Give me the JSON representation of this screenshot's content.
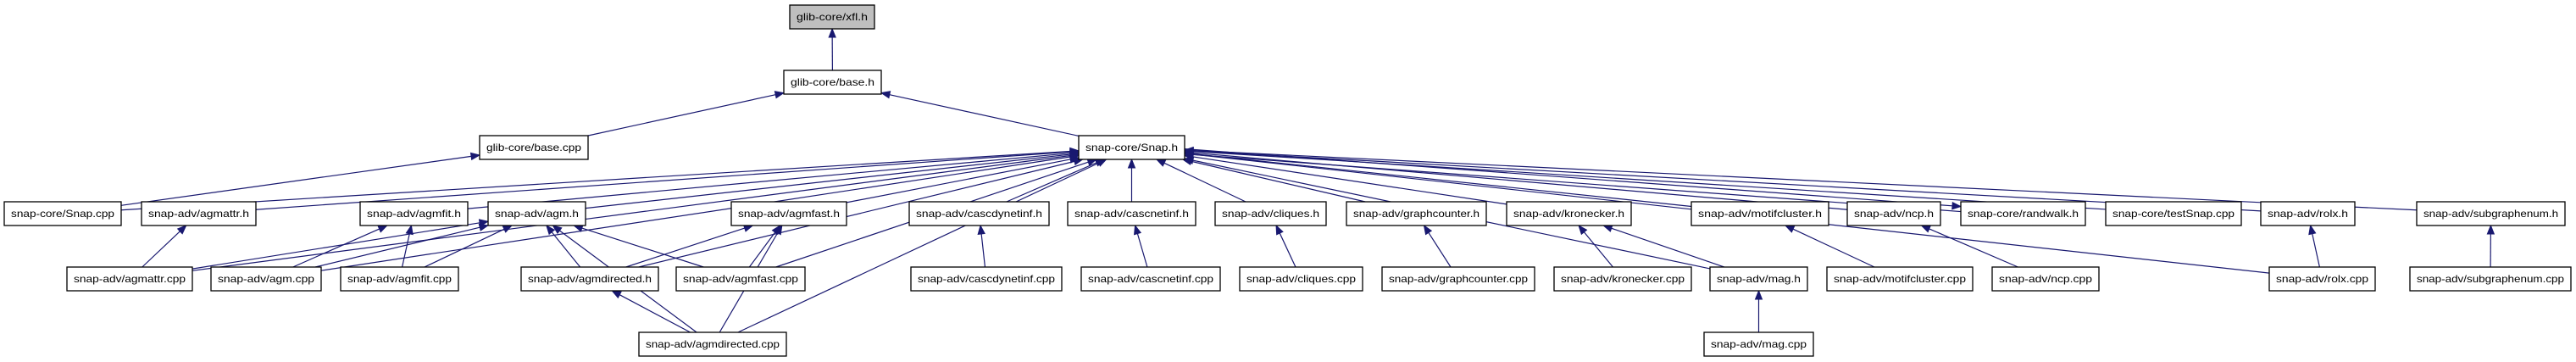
{
  "colors": {
    "edge": "#191970",
    "focus_fill": "#bfbfbf",
    "node_fill": "#ffffff"
  },
  "focus": "xfl_h",
  "nodes": [
    {
      "id": "xfl_h",
      "label": "glib-core/xfl.h"
    },
    {
      "id": "base_h",
      "label": "glib-core/base.h"
    },
    {
      "id": "base_cpp",
      "label": "glib-core/base.cpp"
    },
    {
      "id": "snap_h",
      "label": "snap-core/Snap.h"
    },
    {
      "id": "snap_cpp",
      "label": "snap-core/Snap.cpp"
    },
    {
      "id": "agmattr_h",
      "label": "snap-adv/agmattr.h"
    },
    {
      "id": "agmfit_h",
      "label": "snap-adv/agmfit.h"
    },
    {
      "id": "agm_h",
      "label": "snap-adv/agm.h"
    },
    {
      "id": "agmfast_h",
      "label": "snap-adv/agmfast.h"
    },
    {
      "id": "cascdynetinf_h",
      "label": "snap-adv/cascdynetinf.h"
    },
    {
      "id": "cascnetinf_h",
      "label": "snap-adv/cascnetinf.h"
    },
    {
      "id": "cliques_h",
      "label": "snap-adv/cliques.h"
    },
    {
      "id": "graphcounter_h",
      "label": "snap-adv/graphcounter.h"
    },
    {
      "id": "kronecker_h",
      "label": "snap-adv/kronecker.h"
    },
    {
      "id": "motifcluster_h",
      "label": "snap-adv/motifcluster.h"
    },
    {
      "id": "ncp_h",
      "label": "snap-adv/ncp.h"
    },
    {
      "id": "randwalk_h",
      "label": "snap-core/randwalk.h"
    },
    {
      "id": "testsnap_cpp",
      "label": "snap-core/testSnap.cpp"
    },
    {
      "id": "rolx_h",
      "label": "snap-adv/rolx.h"
    },
    {
      "id": "subgraphenum_h",
      "label": "snap-adv/subgraphenum.h"
    },
    {
      "id": "agmattr_cpp",
      "label": "snap-adv/agmattr.cpp"
    },
    {
      "id": "agm_cpp",
      "label": "snap-adv/agm.cpp"
    },
    {
      "id": "agmfit_cpp",
      "label": "snap-adv/agmfit.cpp"
    },
    {
      "id": "agmdirected_h",
      "label": "snap-adv/agmdirected.h"
    },
    {
      "id": "agmfast_cpp",
      "label": "snap-adv/agmfast.cpp"
    },
    {
      "id": "cascdynetinf_cpp",
      "label": "snap-adv/cascdynetinf.cpp"
    },
    {
      "id": "cascnetinf_cpp",
      "label": "snap-adv/cascnetinf.cpp"
    },
    {
      "id": "cliques_cpp",
      "label": "snap-adv/cliques.cpp"
    },
    {
      "id": "graphcounter_cpp",
      "label": "snap-adv/graphcounter.cpp"
    },
    {
      "id": "kronecker_cpp",
      "label": "snap-adv/kronecker.cpp"
    },
    {
      "id": "mag_h",
      "label": "snap-adv/mag.h"
    },
    {
      "id": "motifcluster_cpp",
      "label": "snap-adv/motifcluster.cpp"
    },
    {
      "id": "ncp_cpp",
      "label": "snap-adv/ncp.cpp"
    },
    {
      "id": "rolx_cpp",
      "label": "snap-adv/rolx.cpp"
    },
    {
      "id": "subgraphenum_cpp",
      "label": "snap-adv/subgraphenum.cpp"
    },
    {
      "id": "agmdirected_cpp",
      "label": "snap-adv/agmdirected.cpp"
    },
    {
      "id": "mag_cpp",
      "label": "snap-adv/mag.cpp"
    }
  ],
  "edges": [
    {
      "from": "base_h",
      "to": "xfl_h"
    },
    {
      "from": "base_cpp",
      "to": "base_h"
    },
    {
      "from": "snap_h",
      "to": "base_h"
    },
    {
      "from": "snap_cpp",
      "to": "base_cpp"
    },
    {
      "from": "snap_cpp",
      "to": "snap_h"
    },
    {
      "from": "agmattr_h",
      "to": "snap_h"
    },
    {
      "from": "agmfit_h",
      "to": "snap_h"
    },
    {
      "from": "agm_h",
      "to": "snap_h"
    },
    {
      "from": "agmfast_h",
      "to": "snap_h"
    },
    {
      "from": "cascdynetinf_h",
      "to": "snap_h"
    },
    {
      "from": "cascnetinf_h",
      "to": "snap_h"
    },
    {
      "from": "cliques_h",
      "to": "snap_h"
    },
    {
      "from": "graphcounter_h",
      "to": "snap_h"
    },
    {
      "from": "kronecker_h",
      "to": "snap_h"
    },
    {
      "from": "motifcluster_h",
      "to": "snap_h"
    },
    {
      "from": "ncp_h",
      "to": "snap_h"
    },
    {
      "from": "randwalk_h",
      "to": "snap_h"
    },
    {
      "from": "snap_h",
      "to": "randwalk_h"
    },
    {
      "from": "testsnap_cpp",
      "to": "snap_h"
    },
    {
      "from": "rolx_h",
      "to": "snap_h"
    },
    {
      "from": "subgraphenum_h",
      "to": "snap_h"
    },
    {
      "from": "agmattr_cpp",
      "to": "agmattr_h"
    },
    {
      "from": "agmattr_cpp",
      "to": "snap_h"
    },
    {
      "from": "agmattr_cpp",
      "to": "agm_h"
    },
    {
      "from": "agm_cpp",
      "to": "snap_h"
    },
    {
      "from": "agm_cpp",
      "to": "agmfit_h"
    },
    {
      "from": "agm_cpp",
      "to": "agm_h"
    },
    {
      "from": "agmfit_cpp",
      "to": "agmfit_h"
    },
    {
      "from": "agmfit_cpp",
      "to": "agm_h"
    },
    {
      "from": "agmdirected_h",
      "to": "snap_h"
    },
    {
      "from": "agmdirected_h",
      "to": "agm_h"
    },
    {
      "from": "agmdirected_h",
      "to": "agmfast_h"
    },
    {
      "from": "agmfast_cpp",
      "to": "agm_h"
    },
    {
      "from": "agmfast_cpp",
      "to": "agmfast_h"
    },
    {
      "from": "agmfast_cpp",
      "to": "snap_h"
    },
    {
      "from": "agmdirected_cpp",
      "to": "agmdirected_h"
    },
    {
      "from": "agmdirected_cpp",
      "to": "agm_h"
    },
    {
      "from": "agmdirected_cpp",
      "to": "agmfast_h"
    },
    {
      "from": "agmdirected_cpp",
      "to": "snap_h"
    },
    {
      "from": "cascdynetinf_cpp",
      "to": "cascdynetinf_h"
    },
    {
      "from": "cascnetinf_cpp",
      "to": "cascnetinf_h"
    },
    {
      "from": "cliques_cpp",
      "to": "cliques_h"
    },
    {
      "from": "graphcounter_cpp",
      "to": "graphcounter_h"
    },
    {
      "from": "kronecker_cpp",
      "to": "kronecker_h"
    },
    {
      "from": "mag_h",
      "to": "kronecker_h"
    },
    {
      "from": "mag_h",
      "to": "snap_h"
    },
    {
      "from": "mag_cpp",
      "to": "mag_h"
    },
    {
      "from": "motifcluster_cpp",
      "to": "motifcluster_h"
    },
    {
      "from": "ncp_cpp",
      "to": "ncp_h"
    },
    {
      "from": "rolx_cpp",
      "to": "rolx_h"
    },
    {
      "from": "rolx_cpp",
      "to": "snap_h"
    },
    {
      "from": "subgraphenum_cpp",
      "to": "subgraphenum_h"
    }
  ]
}
